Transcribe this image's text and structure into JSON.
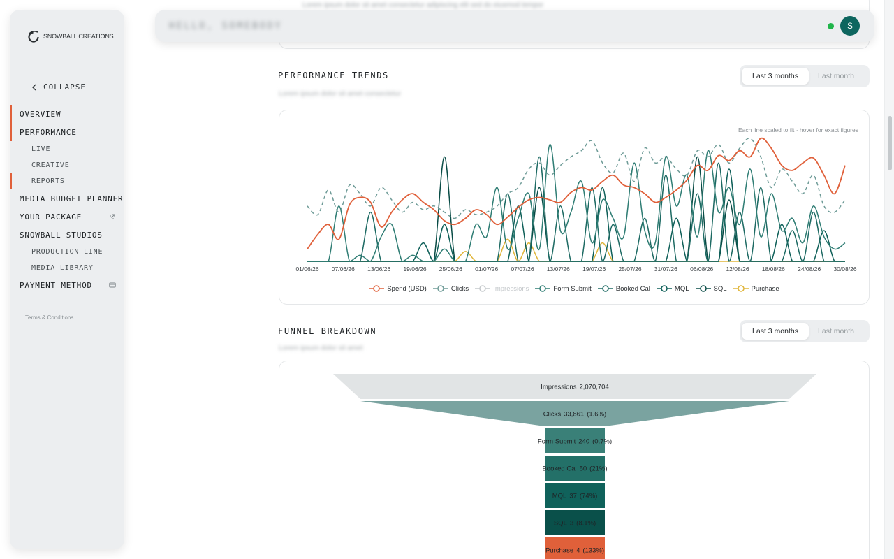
{
  "brand": {
    "name": "Snowball Creations"
  },
  "sidebar": {
    "collapse_label": "COLLAPSE",
    "items": [
      {
        "label": "OVERVIEW",
        "level": "top",
        "marked": true
      },
      {
        "label": "PERFORMANCE",
        "level": "top",
        "marked": true
      },
      {
        "label": "LIVE",
        "level": "sub",
        "marked": false
      },
      {
        "label": "CREATIVE",
        "level": "sub",
        "marked": false
      },
      {
        "label": "REPORTS",
        "level": "sub",
        "marked": true
      },
      {
        "label": "MEDIA BUDGET PLANNER",
        "level": "top",
        "marked": false
      },
      {
        "label": "YOUR PACKAGE",
        "level": "top",
        "marked": false,
        "icon": "external-link-icon"
      },
      {
        "label": "SNOWBALL STUDIOS",
        "level": "top",
        "marked": false
      },
      {
        "label": "PRODUCTION LINE",
        "level": "sub",
        "marked": false
      },
      {
        "label": "MEDIA LIBRARY",
        "level": "sub",
        "marked": false
      },
      {
        "label": "PAYMENT METHOD",
        "level": "top",
        "marked": false,
        "icon": "card-icon"
      }
    ],
    "terms_label": "Terms & Conditions"
  },
  "topbar": {
    "blurred_text": "HELLO, SOMEBODY",
    "status_color": "#21b54b",
    "avatar_initial": "S",
    "avatar_color": "#0e665f"
  },
  "top_fade_text": "Lorem ipsum dolor sit amet consectetur adipiscing elit sed do eiusmod tempor",
  "performance": {
    "title": "PERFORMANCE TRENDS",
    "subtitle": "Lorem ipsum dolor sit amet consectetur",
    "toggle": {
      "active": "Last 3 months",
      "inactive": "Last month"
    },
    "hint": "Each line scaled to fit · hover for exact figures"
  },
  "funnel": {
    "title": "FUNNEL BREAKDOWN",
    "subtitle": "Lorem ipsum dolor sit amet",
    "toggle": {
      "active": "Last 3 months",
      "inactive": "Last month"
    }
  },
  "colors": {
    "accent": "#e0603a",
    "teal_dark": "#0e665f",
    "purchase": "#e0b53a"
  },
  "chart_data": [
    {
      "type": "line",
      "x_labels": [
        "01/06/26",
        "07/06/26",
        "13/06/26",
        "19/06/26",
        "25/06/26",
        "01/07/26",
        "07/07/26",
        "13/07/26",
        "19/07/26",
        "25/07/26",
        "31/07/26",
        "06/08/26",
        "12/08/26",
        "18/08/26",
        "24/08/26",
        "30/08/26"
      ],
      "y_scale": "each series scaled to its own maximum",
      "series": [
        {
          "name": "Spend (USD)",
          "color": "#e0603a",
          "style": "solid",
          "values": [
            0.1,
            0.22,
            0.3,
            0.18,
            0.46,
            0.52,
            0.48,
            0.28,
            0.4,
            0.5,
            0.55,
            0.48,
            0.42,
            0.33,
            0.3,
            0.35,
            0.42,
            0.38,
            0.3,
            0.36,
            0.44,
            0.5,
            0.52,
            0.5,
            0.48,
            0.56,
            0.6,
            0.58,
            0.65,
            0.7,
            0.62,
            0.6,
            0.55,
            0.48,
            0.52,
            0.58,
            0.66,
            0.78,
            0.74,
            0.86,
            0.82,
            0.9,
            0.85,
            1.0,
            0.92,
            0.78,
            0.74,
            0.8,
            0.84,
            0.7,
            0.55,
            0.78
          ]
        },
        {
          "name": "Clicks",
          "color": "#6e9b97",
          "style": "dashed",
          "values": [
            0.45,
            0.38,
            0.58,
            0.4,
            0.62,
            0.55,
            0.45,
            0.6,
            0.5,
            0.4,
            0.48,
            0.42,
            0.45,
            0.4,
            0.35,
            0.42,
            0.38,
            0.4,
            0.45,
            0.55,
            0.6,
            0.75,
            0.8,
            0.7,
            0.78,
            0.85,
            0.9,
            0.98,
            0.8,
            0.72,
            0.88,
            0.65,
            0.92,
            0.8,
            0.85,
            0.75,
            0.7,
            0.9,
            0.85,
            0.95,
            0.8,
            0.92,
            1.0,
            0.85,
            0.6,
            0.75,
            0.65,
            0.55,
            0.7,
            0.45,
            0.4,
            0.5
          ]
        },
        {
          "name": "Impressions",
          "color": "#c4c8cb",
          "style": "solid",
          "hidden": true,
          "values": []
        },
        {
          "name": "Form Submit",
          "color": "#2f7d74",
          "style": "solid",
          "values": [
            0,
            0,
            0,
            0.45,
            0,
            0.05,
            0,
            0.2,
            0.3,
            0,
            0.05,
            0,
            0,
            0.1,
            0,
            0,
            0.3,
            0.2,
            0.6,
            0.1,
            0.35,
            0.55,
            0.1,
            0.95,
            0.25,
            0.4,
            0.65,
            0.15,
            0.5,
            0.35,
            0.2,
            0.8,
            0.25,
            0.15,
            0.85,
            0.45,
            0.7,
            0.2,
            0.9,
            0.4,
            0.6,
            0.3,
            0.75,
            0.2,
            0.55,
            0.25,
            0.35,
            0.15,
            0.45,
            0.2,
            0.1,
            0.15
          ]
        },
        {
          "name": "Booked Cal",
          "color": "#1d6a63",
          "style": "solid",
          "values": [
            0,
            0,
            0,
            0,
            0,
            0,
            0.4,
            0,
            0,
            0,
            0,
            0,
            0,
            0,
            0,
            0,
            0,
            0,
            0,
            0.55,
            0,
            0,
            0.85,
            0,
            0.45,
            0,
            0,
            0.6,
            0,
            0.3,
            0,
            0,
            0.35,
            0,
            0.7,
            0,
            0,
            0.55,
            0,
            0.8,
            0,
            0.4,
            0,
            0.6,
            0,
            0,
            0.25,
            0,
            0.4,
            0,
            0,
            0
          ]
        },
        {
          "name": "MQL",
          "color": "#0e5f58",
          "style": "solid",
          "values": [
            0,
            0,
            0,
            0,
            0,
            0,
            0,
            0,
            0,
            0,
            0,
            0.15,
            0,
            0.3,
            0,
            0,
            0,
            0,
            0,
            0,
            0.45,
            0,
            0,
            0,
            0,
            0,
            0,
            0,
            0.6,
            0,
            0,
            0,
            0,
            0,
            0,
            0.35,
            0,
            0,
            0,
            0,
            0.75,
            0,
            0,
            0,
            0,
            0.3,
            0,
            0,
            0,
            0.25,
            0,
            0
          ]
        },
        {
          "name": "SQL",
          "color": "#094c46",
          "style": "solid",
          "values": [
            0,
            0,
            0,
            0,
            0,
            0,
            0,
            0,
            0,
            0,
            0,
            0,
            0,
            0.85,
            0,
            0,
            0,
            0,
            0,
            0,
            0,
            0,
            0.6,
            0,
            0,
            0,
            0,
            0,
            0,
            0,
            0,
            0,
            0,
            0,
            0,
            0,
            0,
            0.85,
            0,
            0,
            0.5,
            0,
            0,
            0,
            0,
            0,
            0,
            0,
            0,
            0,
            0,
            0
          ]
        },
        {
          "name": "Purchase",
          "color": "#e0b53a",
          "style": "solid",
          "values": [
            0,
            0,
            0,
            0,
            0,
            0,
            0,
            0,
            0,
            0,
            0,
            0,
            0,
            0,
            0,
            0.08,
            0,
            0,
            0,
            0.18,
            0,
            0.15,
            0,
            0,
            0,
            0,
            0,
            0,
            0.15,
            0,
            0,
            0,
            0,
            0,
            0,
            0,
            0,
            0,
            0,
            0,
            0,
            0,
            0,
            0,
            0,
            0,
            0,
            0,
            0,
            0,
            0,
            0
          ]
        }
      ]
    },
    {
      "type": "funnel",
      "stages": [
        {
          "label": "Impressions",
          "value": 2070704,
          "value_text": "2,070,704",
          "pct": "",
          "color": "#e1e4e5",
          "text_color": "#1f2326"
        },
        {
          "label": "Clicks",
          "value": 33861,
          "value_text": "33,861",
          "pct": "(1.6%)",
          "color": "#7aa3a0",
          "text_color": "#1f2326"
        },
        {
          "label": "Form Submit",
          "value": 240,
          "value_text": "240",
          "pct": "(0.7%)",
          "color": "#3a8078",
          "text_color": "#1f2326"
        },
        {
          "label": "Booked Cal",
          "value": 50,
          "value_text": "50",
          "pct": "(21%)",
          "color": "#237068",
          "text_color": "#1f2326"
        },
        {
          "label": "MQL",
          "value": 37,
          "value_text": "37",
          "pct": "(74%)",
          "color": "#10625b",
          "text_color": "#1f2326"
        },
        {
          "label": "SQL",
          "value": 3,
          "value_text": "3",
          "pct": "(8.1%)",
          "color": "#0a504a",
          "text_color": "#1f2326"
        },
        {
          "label": "Purchase",
          "value": 4,
          "value_text": "4",
          "pct": "(133%)",
          "color": "#e0603a",
          "text_color": "#1f2326"
        }
      ]
    }
  ]
}
